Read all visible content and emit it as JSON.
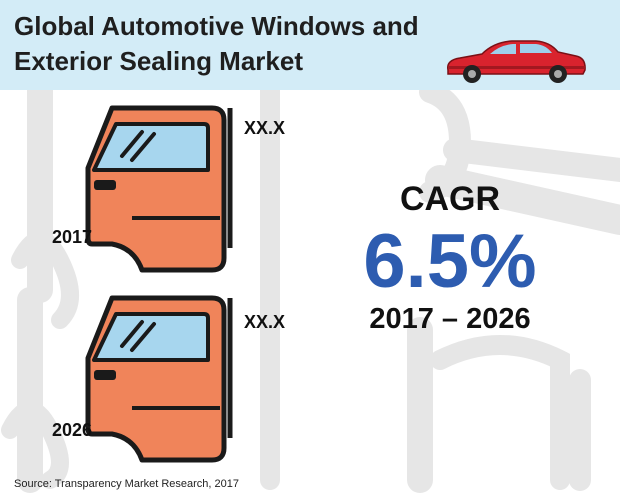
{
  "header": {
    "title_line1": "Global Automotive Windows and",
    "title_line2": "Exterior Sealing Market",
    "car_icon": "red-sedan-icon",
    "bg_color": "#d3ecf7"
  },
  "panels": [
    {
      "year": "2017",
      "value": "XX.X",
      "icon": "car-door-icon"
    },
    {
      "year": "2026",
      "value": "XX.X",
      "icon": "car-door-icon"
    }
  ],
  "cagr": {
    "label": "CAGR",
    "value": "6.5%",
    "period": "2017 – 2026",
    "value_color": "#2d5cb0"
  },
  "source": "Source: Transparency Market Research, 2017",
  "colors": {
    "door_fill": "#f0845a",
    "door_outline": "#1a1a1a",
    "window_fill": "#a7d6ee",
    "car_body": "#d9232e"
  }
}
